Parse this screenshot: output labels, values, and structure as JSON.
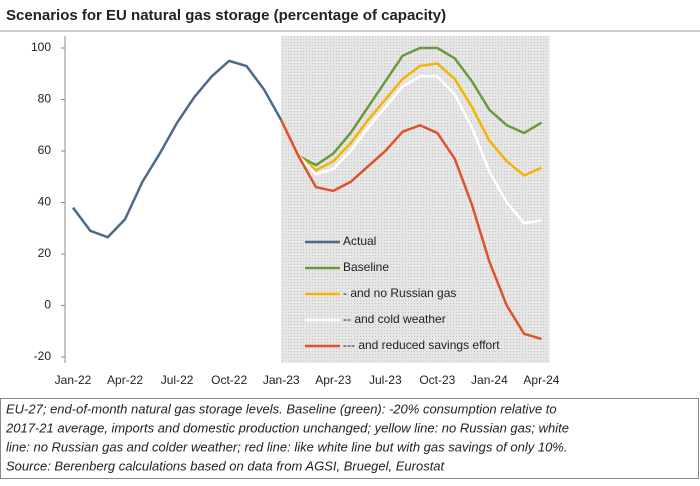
{
  "chart_data": {
    "type": "line",
    "title": "Scenarios for EU natural gas storage (percentage of capacity)",
    "categories": [
      "Jan-22",
      null,
      null,
      "Apr-22",
      null,
      null,
      "Jul-22",
      null,
      null,
      "Oct-22",
      null,
      null,
      "Jan-23",
      null,
      null,
      "Apr-23",
      null,
      null,
      "Jul-23",
      null,
      null,
      "Oct-23",
      null,
      null,
      "Jan-24",
      null,
      null,
      "Apr-24"
    ],
    "series": [
      {
        "name": "Actual",
        "color": "#4d6a88",
        "values": [
          38,
          29,
          26.5,
          33.5,
          48,
          59,
          71,
          81,
          89,
          95,
          93,
          84,
          72,
          null,
          null,
          null,
          null,
          null,
          null,
          null,
          null,
          null,
          null,
          null,
          null,
          null,
          null,
          null
        ]
      },
      {
        "name": "Baseline",
        "color": "#6b9a3c",
        "values": [
          null,
          null,
          null,
          null,
          null,
          null,
          null,
          null,
          null,
          null,
          null,
          null,
          72,
          58,
          54.5,
          59,
          67,
          77,
          87,
          97,
          100,
          100,
          96,
          87,
          76,
          70,
          67,
          71
        ]
      },
      {
        "name": "- and no Russian gas",
        "color": "#f4b400",
        "values": [
          null,
          null,
          null,
          null,
          null,
          null,
          null,
          null,
          null,
          null,
          null,
          null,
          72,
          58,
          52.5,
          56,
          63,
          72,
          80,
          88,
          93,
          94,
          88,
          77,
          64,
          56,
          50.5,
          53.5
        ]
      },
      {
        "name": "-- and cold weather",
        "color": "#ffffff",
        "values": [
          null,
          null,
          null,
          null,
          null,
          null,
          null,
          null,
          null,
          null,
          null,
          null,
          72,
          58,
          51,
          53,
          60,
          69,
          77,
          85,
          89,
          89,
          82,
          69,
          52,
          40,
          32,
          33
        ]
      },
      {
        "name": "--- and reduced savings effort",
        "color": "#e0522b",
        "values": [
          null,
          null,
          null,
          null,
          null,
          null,
          null,
          null,
          null,
          null,
          null,
          null,
          72,
          58,
          46,
          44.5,
          48,
          54,
          60,
          67.5,
          70,
          67,
          57,
          39,
          17,
          0,
          -11,
          -13
        ]
      }
    ],
    "ylim": [
      -20,
      100
    ],
    "yticks": [
      -20,
      0,
      20,
      40,
      60,
      80,
      100
    ],
    "grid": false,
    "note": [
      "EU-27; end-of-month natural gas storage levels. Baseline (green): -20% consumption relative to",
      "2017-21 average, imports and domestic production unchanged; yellow line: no Russian gas; white",
      "line: no Russian gas and colder weather; red line: like white line but with gas savings of only 10%.",
      "Source: Berenberg calculations based on data from AGSI, Bruegel, Eurostat"
    ]
  }
}
